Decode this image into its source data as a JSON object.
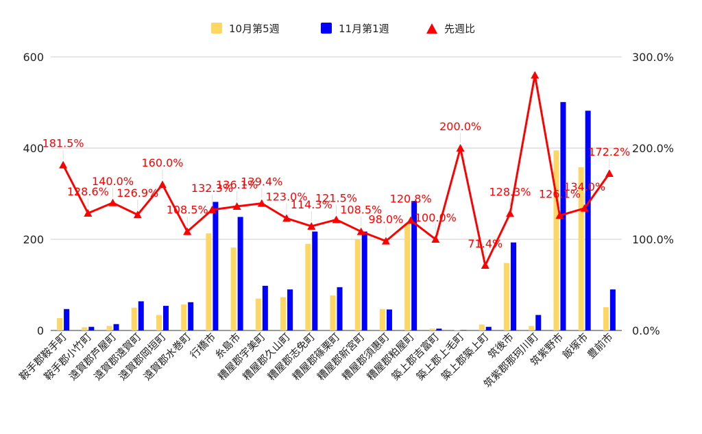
{
  "chart_data": {
    "type": "bar",
    "categories": [
      "鞍手郡鞍手町",
      "鞍手郡小竹町",
      "遠賀郡芦屋町",
      "遠賀郡遠賀町",
      "遠賀郡岡垣町",
      "遠賀郡水巻町",
      "行橋市",
      "糸島市",
      "糟屋郡宇美町",
      "糟屋郡久山町",
      "糟屋郡志免町",
      "糟屋郡篠栗町",
      "糟屋郡新宮町",
      "糟屋郡須惠町",
      "糟屋郡粕屋町",
      "築上郡吉富町",
      "築上郡上毛町",
      "築上郡築上町",
      "筑後市",
      "筑紫郡那珂川町",
      "筑紫野市",
      "飯塚市",
      "豊前市"
    ],
    "series": [
      {
        "name": "10月第5週",
        "axis": "left",
        "kind": "bar",
        "color": "#fdd663",
        "values": [
          27,
          7,
          10,
          50,
          34,
          57,
          213,
          182,
          70,
          73,
          190,
          77,
          200,
          47,
          235,
          4,
          1,
          13,
          148,
          10,
          395,
          358,
          51
        ]
      },
      {
        "name": "11月第1週",
        "axis": "left",
        "kind": "bar",
        "color": "#0000ff",
        "values": [
          47,
          8,
          14,
          64,
          54,
          62,
          282,
          249,
          98,
          90,
          217,
          95,
          217,
          46,
          284,
          4,
          1,
          8,
          193,
          34,
          501,
          482,
          90
        ]
      },
      {
        "name": "先週比",
        "axis": "right",
        "kind": "line",
        "color": "#ff0000",
        "values": [
          181.5,
          128.6,
          140.0,
          126.9,
          160.0,
          108.5,
          132.3,
          136.1,
          139.4,
          123.0,
          114.3,
          121.5,
          108.5,
          98.0,
          120.8,
          100.0,
          200.0,
          71.4,
          128.3,
          280.0,
          126.1,
          134.0,
          172.2
        ],
        "labels": [
          "181.5%",
          "128.6%",
          "140.0%",
          "126.9%",
          "160.0%",
          "108.5%",
          "132.3%",
          "136.1%",
          "139.4%",
          "123.0%",
          "114.3%",
          "121.5%",
          "108.5%",
          "98.0%",
          "120.8%",
          "100.0%",
          "200.0%",
          "71.4%",
          "128.3%",
          "",
          "126.1%",
          "134.0%",
          "172.2%"
        ]
      }
    ],
    "y_left": {
      "min": 0,
      "max": 600,
      "ticks": [
        "0",
        "200",
        "400",
        "600"
      ]
    },
    "y_right": {
      "min": 0,
      "max": 300,
      "ticks": [
        "0.0%",
        "100.0%",
        "200.0%",
        "300.0%"
      ]
    },
    "grid": true,
    "legend": {
      "position": "top-center",
      "items": [
        "10月第5週",
        "11月第1週",
        "先週比"
      ]
    },
    "title": "",
    "xlabel": "",
    "ylabel": ""
  }
}
